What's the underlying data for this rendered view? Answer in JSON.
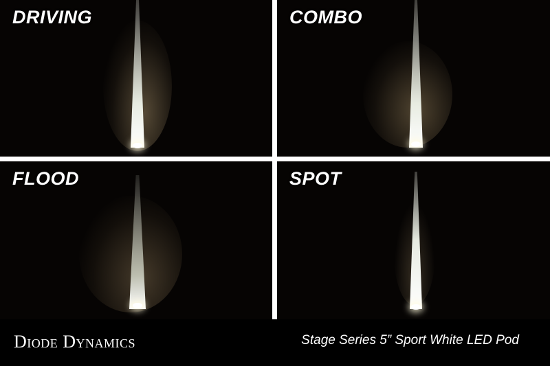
{
  "panels": [
    {
      "label": "DRIVING"
    },
    {
      "label": "COMBO"
    },
    {
      "label": "FLOOD"
    },
    {
      "label": "SPOT"
    }
  ],
  "footer": {
    "brand": "Diode Dynamics",
    "product": "Stage Series 5” Sport White LED Pod"
  },
  "colors": {
    "background": "#060403",
    "divider": "#ffffff",
    "text": "#ffffff"
  }
}
